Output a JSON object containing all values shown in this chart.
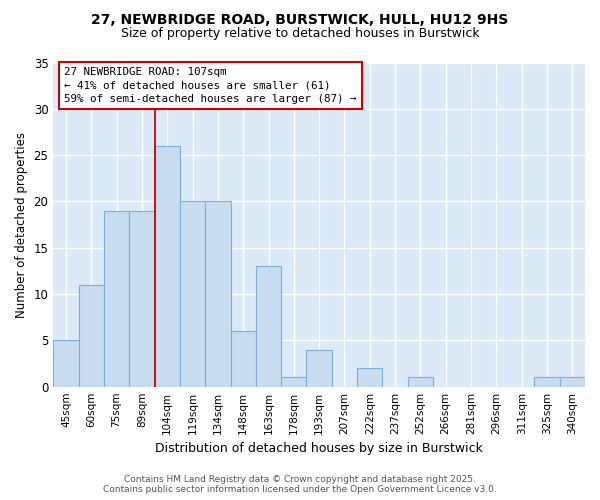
{
  "title1": "27, NEWBRIDGE ROAD, BURSTWICK, HULL, HU12 9HS",
  "title2": "Size of property relative to detached houses in Burstwick",
  "xlabel": "Distribution of detached houses by size in Burstwick",
  "ylabel": "Number of detached properties",
  "categories": [
    "45sqm",
    "60sqm",
    "75sqm",
    "89sqm",
    "104sqm",
    "119sqm",
    "134sqm",
    "148sqm",
    "163sqm",
    "178sqm",
    "193sqm",
    "207sqm",
    "222sqm",
    "237sqm",
    "252sqm",
    "266sqm",
    "281sqm",
    "296sqm",
    "311sqm",
    "325sqm",
    "340sqm"
  ],
  "values": [
    5,
    11,
    19,
    19,
    26,
    20,
    20,
    6,
    13,
    1,
    4,
    0,
    2,
    0,
    1,
    0,
    0,
    0,
    0,
    1,
    1
  ],
  "bar_color": "#c8ddf0",
  "bar_edge_color": "#7ab0d8",
  "figure_background": "#ffffff",
  "plot_background": "#dce9f7",
  "grid_color": "#ffffff",
  "red_line_x": 4,
  "annotation_text": "27 NEWBRIDGE ROAD: 107sqm\n← 41% of detached houses are smaller (61)\n59% of semi-detached houses are larger (87) →",
  "annotation_box_facecolor": "#ffffff",
  "annotation_border_color": "#cc0000",
  "ylim": [
    0,
    35
  ],
  "yticks": [
    0,
    5,
    10,
    15,
    20,
    25,
    30,
    35
  ],
  "footer_text": "Contains HM Land Registry data © Crown copyright and database right 2025.\nContains public sector information licensed under the Open Government Licence v3.0."
}
